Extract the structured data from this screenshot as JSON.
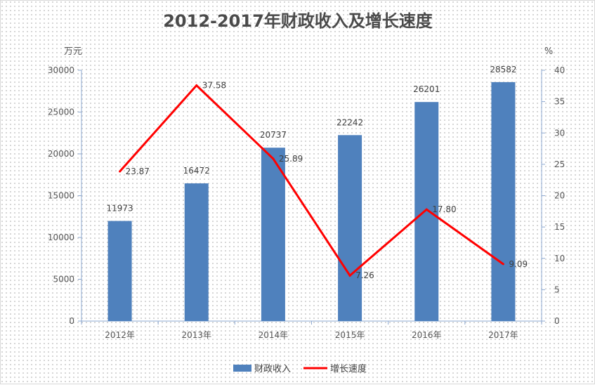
{
  "chart_data": {
    "type": "bar",
    "title": "2012-2017年财政收入及增长速度",
    "categories": [
      "2012年",
      "2013年",
      "2014年",
      "2015年",
      "2016年",
      "2017年"
    ],
    "y_unit": "万元",
    "y2_unit": "%",
    "ylim": [
      0,
      30000
    ],
    "y_ticks": [
      "0",
      "5000",
      "10000",
      "15000",
      "20000",
      "25000",
      "30000"
    ],
    "y2lim": [
      0,
      40
    ],
    "y2_ticks": [
      "0",
      "5",
      "10",
      "15",
      "20",
      "25",
      "30",
      "35",
      "40"
    ],
    "grid": false,
    "legend_position": "bottom",
    "series": [
      {
        "name": "财政收入",
        "type": "bar",
        "axis": "left",
        "color": "#4f81bd",
        "values": [
          11973,
          16472,
          20737,
          22242,
          26201,
          28582
        ],
        "labels": [
          "11973",
          "16472",
          "20737",
          "22242",
          "26201",
          "28582"
        ]
      },
      {
        "name": "增长速度",
        "type": "line",
        "axis": "right",
        "color": "#ff0000",
        "values": [
          23.87,
          37.58,
          25.89,
          7.26,
          17.8,
          9.09
        ],
        "labels": [
          "23.87",
          "37.58",
          "25.89",
          "7.26",
          "17.80",
          "9.09"
        ]
      }
    ]
  }
}
